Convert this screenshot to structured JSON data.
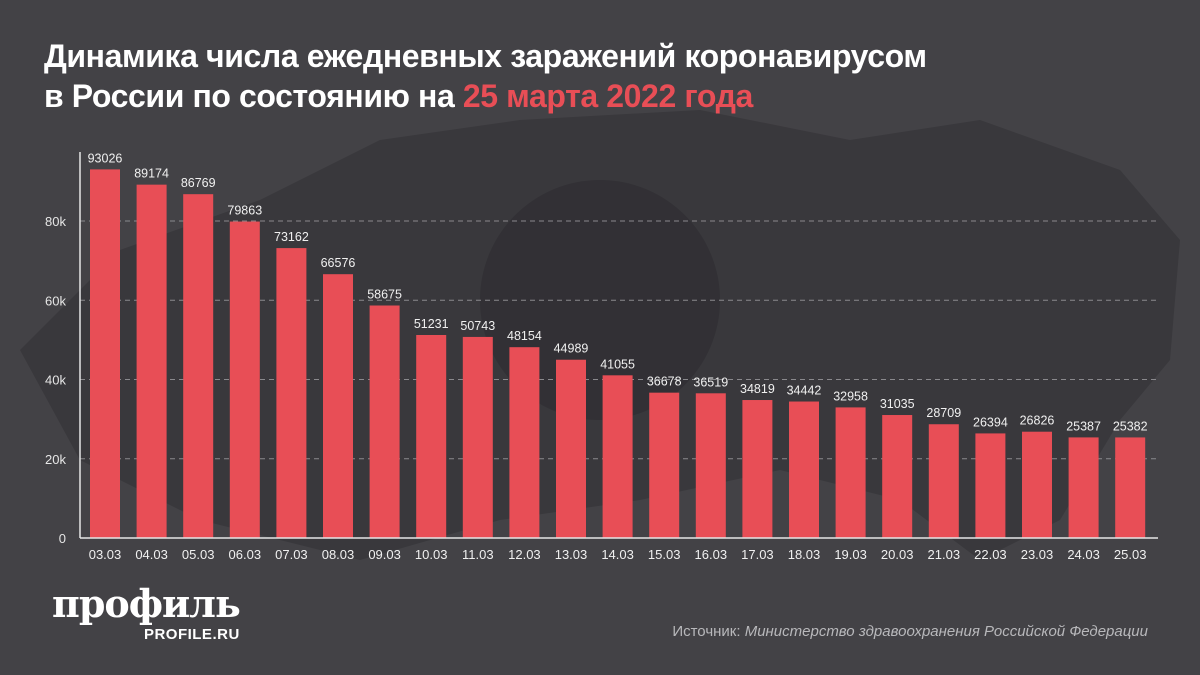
{
  "title": {
    "line1": "Динамика числа ежедневных заражений коронавирусом",
    "line2_prefix": "в России по состоянию на ",
    "line2_accent": "25 марта 2022 года"
  },
  "colors": {
    "background": "#434246",
    "bar": "#e84e56",
    "accent": "#e84e56"
  },
  "chart_data": {
    "type": "bar",
    "title": "Динамика числа ежедневных заражений коронавирусом в России по состоянию на 25 марта 2022 года",
    "categories": [
      "03.03",
      "04.03",
      "05.03",
      "06.03",
      "07.03",
      "08.03",
      "09.03",
      "10.03",
      "11.03",
      "12.03",
      "13.03",
      "14.03",
      "15.03",
      "16.03",
      "17.03",
      "18.03",
      "19.03",
      "20.03",
      "21.03",
      "22.03",
      "23.03",
      "24.03",
      "25.03"
    ],
    "values": [
      93026,
      89174,
      86769,
      79863,
      73162,
      66576,
      58675,
      51231,
      50743,
      48154,
      44989,
      41055,
      36678,
      36519,
      34819,
      34442,
      32958,
      31035,
      28709,
      26394,
      26826,
      25387,
      25382
    ],
    "yticks": [
      0,
      20000,
      40000,
      60000,
      80000
    ],
    "ytick_labels": [
      "0",
      "20k",
      "40k",
      "60k",
      "80k"
    ],
    "ylim": [
      0,
      95000
    ],
    "grid": "horizontal dashed",
    "xlabel": "",
    "ylabel": ""
  },
  "logo": {
    "name": "профиль",
    "url": "PROFILE.RU"
  },
  "source": {
    "label": "Источник: ",
    "text": "Министерство здравоохранения Российской Федерации"
  }
}
